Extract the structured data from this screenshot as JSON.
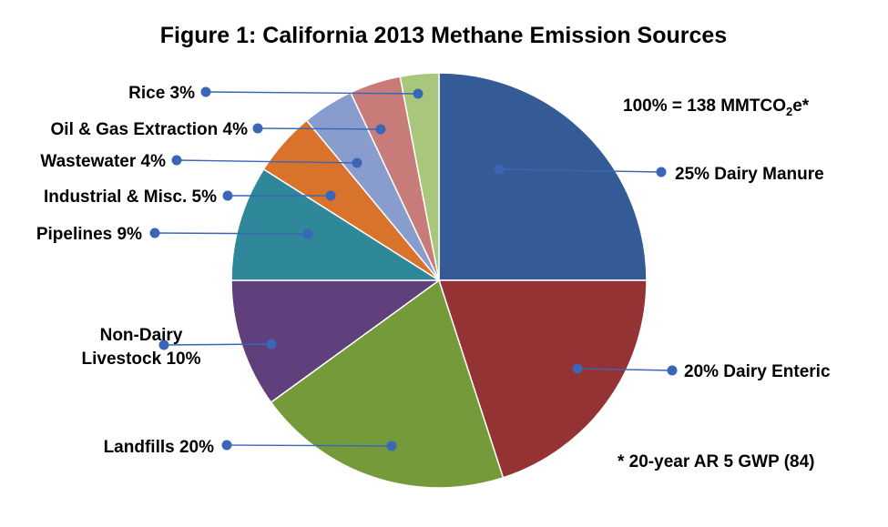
{
  "chart_data": {
    "type": "pie",
    "title": "Figure 1: California 2013 Methane Emission Sources",
    "total_note": "100% = 138 MMTCO",
    "total_note_sub": "2",
    "total_note_suffix": "e*",
    "footnote": "*  20-year AR 5 GWP (84)",
    "slices": [
      {
        "name": "Dairy Manure",
        "label": "25% Dairy Manure",
        "value": 25,
        "color": "#355b97"
      },
      {
        "name": "Dairy Enteric",
        "label": "20% Dairy Enteric",
        "value": 20,
        "color": "#953233"
      },
      {
        "name": "Landfills",
        "label": "Landfills 20%",
        "value": 20,
        "color": "#759a39"
      },
      {
        "name": "Non-Dairy Livestock",
        "label": [
          "Non-Dairy",
          "Livestock 10%"
        ],
        "value": 10,
        "color": "#5f3f7c"
      },
      {
        "name": "Pipelines",
        "label": "Pipelines 9%",
        "value": 9,
        "color": "#2f8899"
      },
      {
        "name": "Industrial & Misc.",
        "label": "Industrial & Misc. 5%",
        "value": 5,
        "color": "#d9722a"
      },
      {
        "name": "Wastewater",
        "label": "Wastewater 4%",
        "value": 4,
        "color": "#889ccd"
      },
      {
        "name": "Oil & Gas Extraction",
        "label": "Oil & Gas Extraction 4%",
        "value": 4,
        "color": "#c77c7a"
      },
      {
        "name": "Rice",
        "label": "Rice 3%",
        "value": 3,
        "color": "#a9c77c"
      }
    ]
  }
}
